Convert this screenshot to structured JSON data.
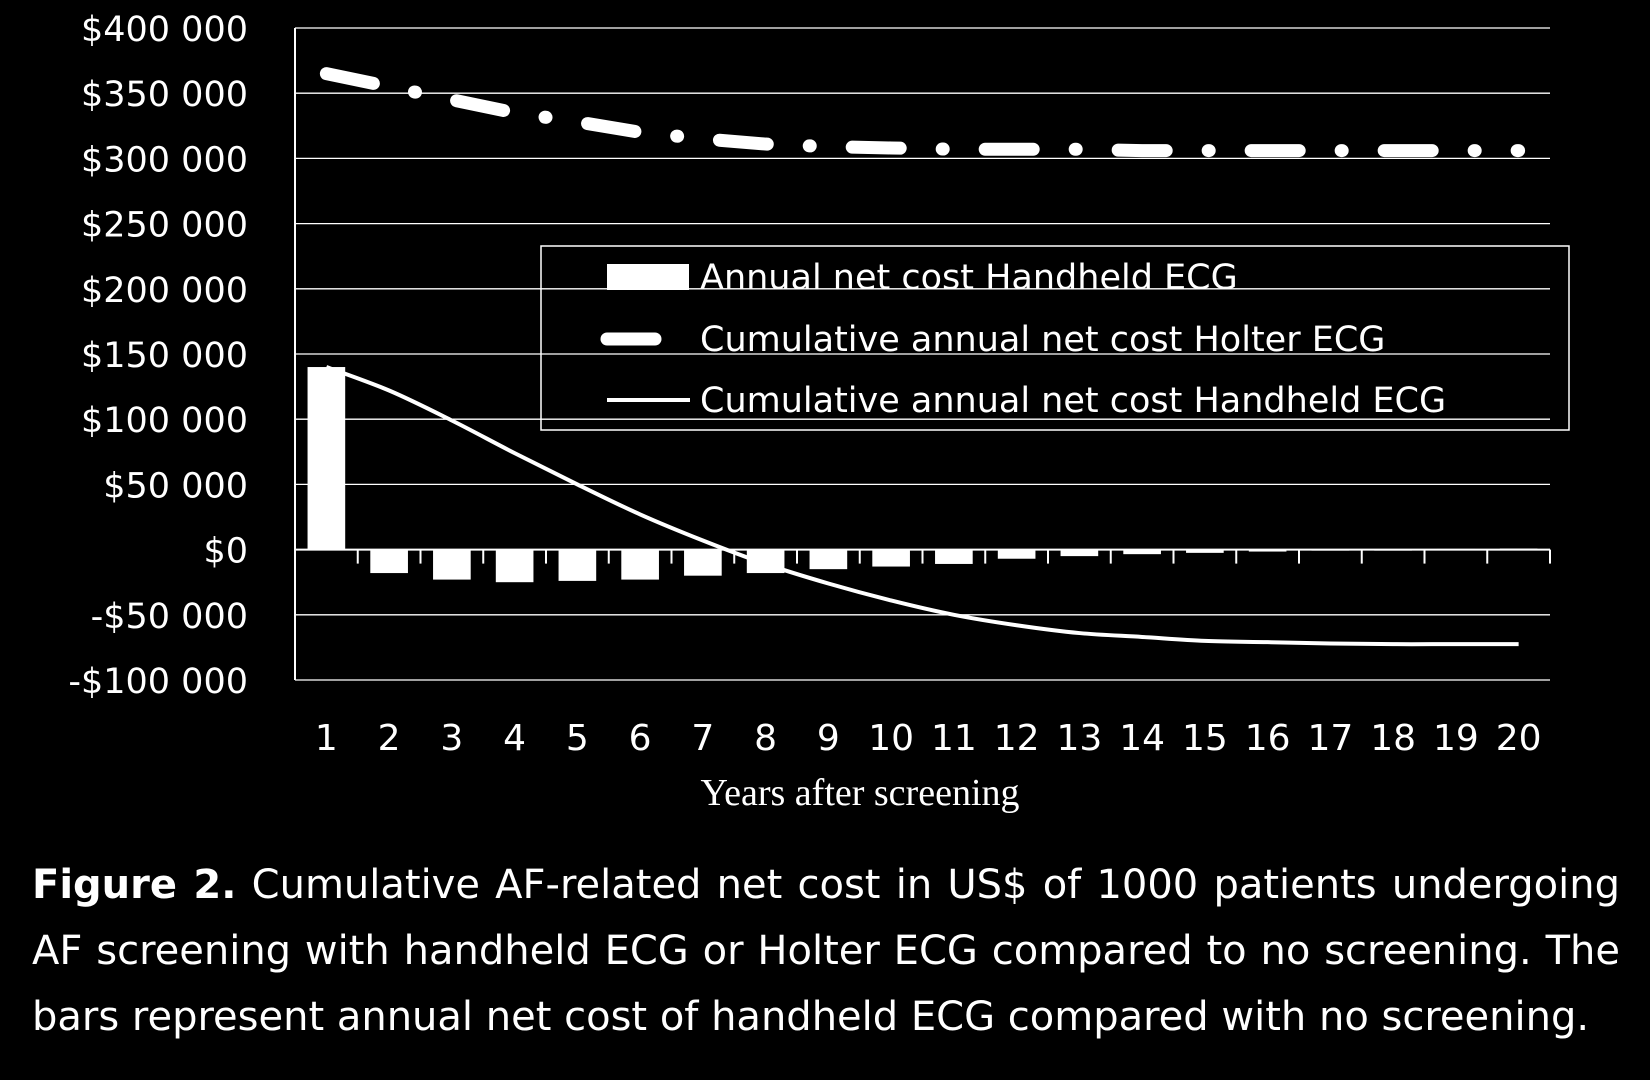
{
  "chart_data": {
    "type": "bar",
    "title": "",
    "xlabel": "Years after screening",
    "ylabel": "",
    "categories": [
      "1",
      "2",
      "3",
      "4",
      "5",
      "6",
      "7",
      "8",
      "9",
      "10",
      "11",
      "12",
      "13",
      "14",
      "15",
      "16",
      "17",
      "18",
      "19",
      "20"
    ],
    "ylim": [
      -100000,
      400000
    ],
    "yticks": [
      400000,
      350000,
      300000,
      250000,
      200000,
      150000,
      100000,
      50000,
      0,
      -50000,
      -100000
    ],
    "ytick_labels": [
      "$400 000",
      "$350 000",
      "$300 000",
      "$250 000",
      "$200 000",
      "$150 000",
      "$100 000",
      "$50 000",
      "$0",
      "-$50 000",
      "-$100 000"
    ],
    "grid": true,
    "legend_position": "center-right",
    "series": [
      {
        "name": "Annual net cost Handheld ECG",
        "type": "bar",
        "color": "#ffffff",
        "values": [
          140000,
          -18000,
          -23000,
          -25000,
          -24000,
          -23000,
          -20000,
          -18000,
          -15000,
          -13000,
          -11000,
          -7000,
          -5000,
          -3500,
          -2500,
          -1500,
          -500,
          0,
          500,
          800
        ]
      },
      {
        "name": "Cumulative annual net cost Holter ECG",
        "type": "line",
        "style": "dash-dot",
        "color": "#ffffff",
        "values": [
          365000,
          355000,
          345000,
          335000,
          328000,
          320000,
          315000,
          311000,
          309000,
          308000,
          307000,
          307000,
          307000,
          306000,
          306000,
          306000,
          306000,
          306000,
          306000,
          306000
        ]
      },
      {
        "name": "Cumulative annual net cost Handheld ECG",
        "type": "line",
        "style": "solid",
        "color": "#ffffff",
        "values": [
          140000,
          122000,
          99000,
          74000,
          50000,
          27000,
          7000,
          -11000,
          -26000,
          -39000,
          -50000,
          -58000,
          -64000,
          -67000,
          -70000,
          -71000,
          -72000,
          -72500,
          -72500,
          -72500
        ]
      }
    ]
  },
  "caption": {
    "label": "Figure 2.",
    "text": " Cumulative AF-related net cost in US$ of 1000 patients undergoing AF screening with handheld ECG or Holter ECG compared to no screening. The bars represent annual net cost of handheld ECG compared with no screening."
  }
}
